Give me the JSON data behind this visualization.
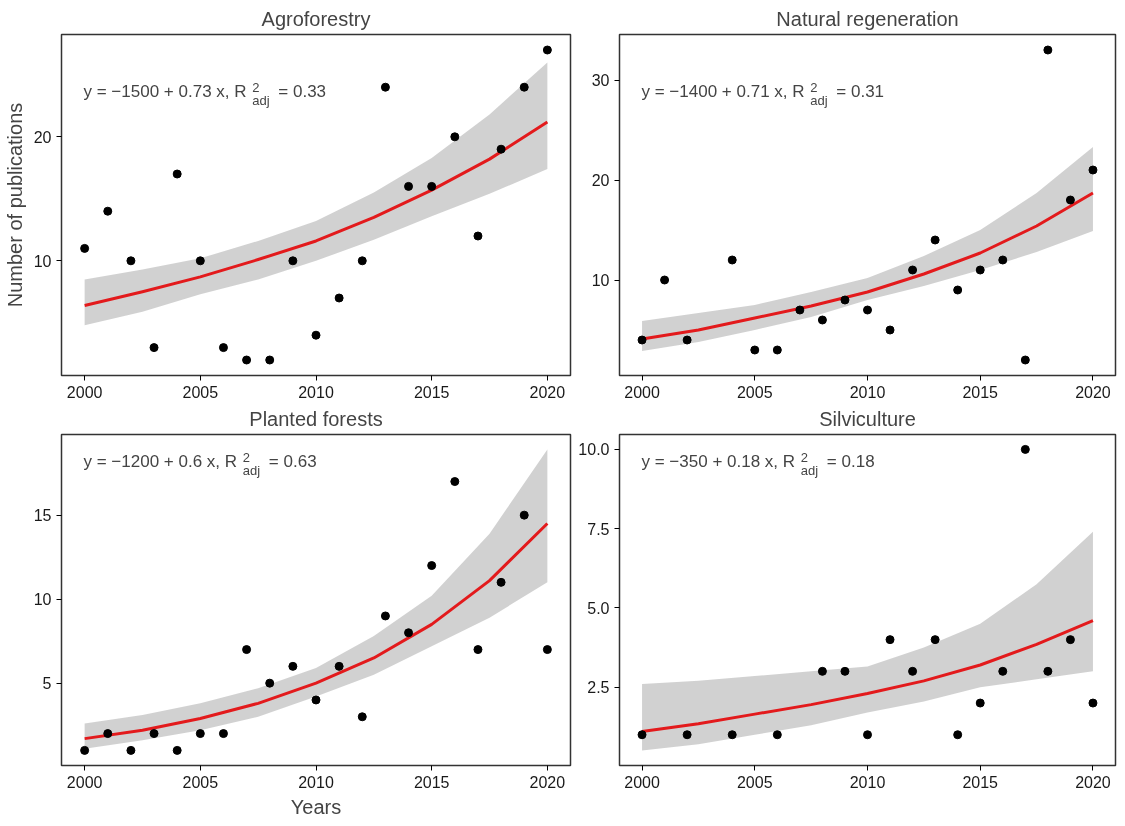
{
  "chart_data": [
    {
      "type": "scatter",
      "title": "Agroforestry",
      "ylabel": "Number of publications",
      "xlim": [
        1999,
        2021
      ],
      "ylim": [
        0.75,
        28.25
      ],
      "xticks": [
        2000,
        2005,
        2010,
        2015,
        2020
      ],
      "yticks": [
        10,
        20
      ],
      "grid": false,
      "annotations": [
        "y = −1500 + 0.73 x,  R$^{2}$$_{adj}$ = 0.33"
      ],
      "series": [
        {
          "marker": "circle",
          "color": "#000000",
          "x": [
            2000,
            2001,
            2002,
            2003,
            2004,
            2005,
            2006,
            2007,
            2008,
            2009,
            2010,
            2011,
            2012,
            2013,
            2014,
            2015,
            2016,
            2017,
            2018,
            2019,
            2020
          ],
          "values": [
            11,
            14,
            10,
            3,
            17,
            10,
            3,
            2,
            2,
            10,
            4,
            7,
            10,
            24,
            16,
            16,
            20,
            12,
            19,
            24,
            27
          ]
        },
        {
          "type": "line",
          "color": "#e31a1c",
          "x": [
            2000,
            2002.5,
            2005,
            2007.5,
            2010,
            2012.5,
            2015,
            2017.5,
            2020
          ],
          "values": [
            6.4,
            7.5,
            8.7,
            10.1,
            11.6,
            13.5,
            15.7,
            18.2,
            21.2
          ],
          "lower": [
            4.8,
            5.9,
            7.3,
            8.5,
            10.0,
            11.7,
            13.6,
            15.4,
            17.4
          ],
          "upper": [
            8.5,
            9.3,
            10.2,
            11.6,
            13.2,
            15.5,
            18.3,
            21.8,
            26.0
          ]
        }
      ]
    },
    {
      "type": "scatter",
      "title": "Natural regeneration",
      "xlim": [
        1999,
        2021
      ],
      "ylim": [
        0.45,
        34.55
      ],
      "xticks": [
        2000,
        2005,
        2010,
        2015,
        2020
      ],
      "yticks": [
        10,
        20,
        30
      ],
      "grid": false,
      "annotations": [
        "y = −1400 + 0.71 x,  R$^{2}$$_{adj}$ = 0.31"
      ],
      "series": [
        {
          "marker": "circle",
          "color": "#000000",
          "x": [
            2000,
            2001,
            2002,
            2004,
            2005,
            2006,
            2007,
            2008,
            2009,
            2010,
            2011,
            2012,
            2013,
            2014,
            2015,
            2016,
            2017,
            2018,
            2019,
            2020
          ],
          "values": [
            4,
            10,
            4,
            12,
            3,
            3,
            7,
            6,
            8,
            7,
            5,
            11,
            14,
            9,
            11,
            12,
            2,
            33,
            18,
            21
          ]
        },
        {
          "type": "line",
          "color": "#e31a1c",
          "x": [
            2000,
            2002.5,
            2005,
            2007.5,
            2010,
            2012.5,
            2015,
            2017.5,
            2020
          ],
          "values": [
            4.1,
            5.0,
            6.2,
            7.4,
            8.8,
            10.6,
            12.7,
            15.4,
            18.7
          ],
          "lower": [
            2.9,
            3.8,
            5.0,
            6.3,
            8.0,
            9.4,
            11.0,
            12.8,
            14.9
          ],
          "upper": [
            5.9,
            6.7,
            7.5,
            8.8,
            10.2,
            12.4,
            15.0,
            18.7,
            23.3
          ]
        }
      ]
    },
    {
      "type": "scatter",
      "title": "Planted forests",
      "xlabel": "Years",
      "xlim": [
        1999,
        2021
      ],
      "ylim": [
        0.1,
        19.8
      ],
      "xticks": [
        2000,
        2005,
        2010,
        2015,
        2020
      ],
      "yticks": [
        5,
        10,
        15
      ],
      "grid": false,
      "annotations": [
        "y = −1200 + 0.6 x,  R$^{2}$$_{adj}$ = 0.63"
      ],
      "series": [
        {
          "marker": "circle",
          "color": "#000000",
          "x": [
            2000,
            2001,
            2002,
            2003,
            2004,
            2005,
            2006,
            2007,
            2008,
            2009,
            2010,
            2011,
            2012,
            2013,
            2014,
            2015,
            2016,
            2017,
            2018,
            2019,
            2020
          ],
          "values": [
            1,
            2,
            1,
            2,
            1,
            2,
            2,
            7,
            5,
            6,
            4,
            6,
            3,
            9,
            8,
            12,
            17,
            7,
            11,
            15,
            7
          ]
        },
        {
          "type": "line",
          "color": "#e31a1c",
          "x": [
            2000,
            2002.5,
            2005,
            2007.5,
            2010,
            2012.5,
            2015,
            2017.5,
            2020
          ],
          "values": [
            1.7,
            2.2,
            2.9,
            3.8,
            5.0,
            6.5,
            8.5,
            11.1,
            14.5
          ],
          "lower": [
            1.1,
            1.6,
            2.2,
            3.0,
            4.2,
            5.5,
            7.2,
            8.9,
            11.0
          ],
          "upper": [
            2.6,
            3.1,
            3.8,
            4.7,
            5.9,
            7.8,
            10.2,
            13.9,
            18.9
          ]
        }
      ]
    },
    {
      "type": "scatter",
      "title": "Silviculture",
      "xlim": [
        1999,
        2021
      ],
      "ylim": [
        0.03,
        10.47
      ],
      "xticks": [
        2000,
        2005,
        2010,
        2015,
        2020
      ],
      "yticks": [
        {
          "value": 2.5,
          "label": "2.5"
        },
        {
          "value": 5,
          "label": "5.0"
        },
        {
          "value": 7.5,
          "label": "7.5"
        },
        {
          "value": 10,
          "label": "10.0"
        }
      ],
      "grid": false,
      "annotations": [
        "y = −350 + 0.18 x,  R$^{2}$$_{adj}$ = 0.18"
      ],
      "series": [
        {
          "marker": "circle",
          "color": "#000000",
          "x": [
            2000,
            2002,
            2004,
            2006,
            2008,
            2009,
            2010,
            2011,
            2012,
            2013,
            2014,
            2015,
            2016,
            2017,
            2018,
            2019,
            2020
          ],
          "values": [
            1,
            1,
            1,
            1,
            3,
            3,
            1,
            4,
            3,
            4,
            1,
            2,
            3,
            10,
            3,
            4,
            2
          ]
        },
        {
          "type": "line",
          "color": "#e31a1c",
          "x": [
            2000,
            2002.5,
            2005,
            2007.5,
            2010,
            2012.5,
            2015,
            2017.5,
            2020
          ],
          "values": [
            1.1,
            1.35,
            1.65,
            1.95,
            2.3,
            2.7,
            3.2,
            3.85,
            4.6
          ],
          "lower": [
            0.5,
            0.7,
            1.0,
            1.3,
            1.7,
            2.05,
            2.5,
            2.75,
            3.0
          ],
          "upper": [
            2.6,
            2.7,
            2.85,
            3.0,
            3.15,
            3.75,
            4.5,
            5.75,
            7.4
          ]
        }
      ]
    }
  ]
}
